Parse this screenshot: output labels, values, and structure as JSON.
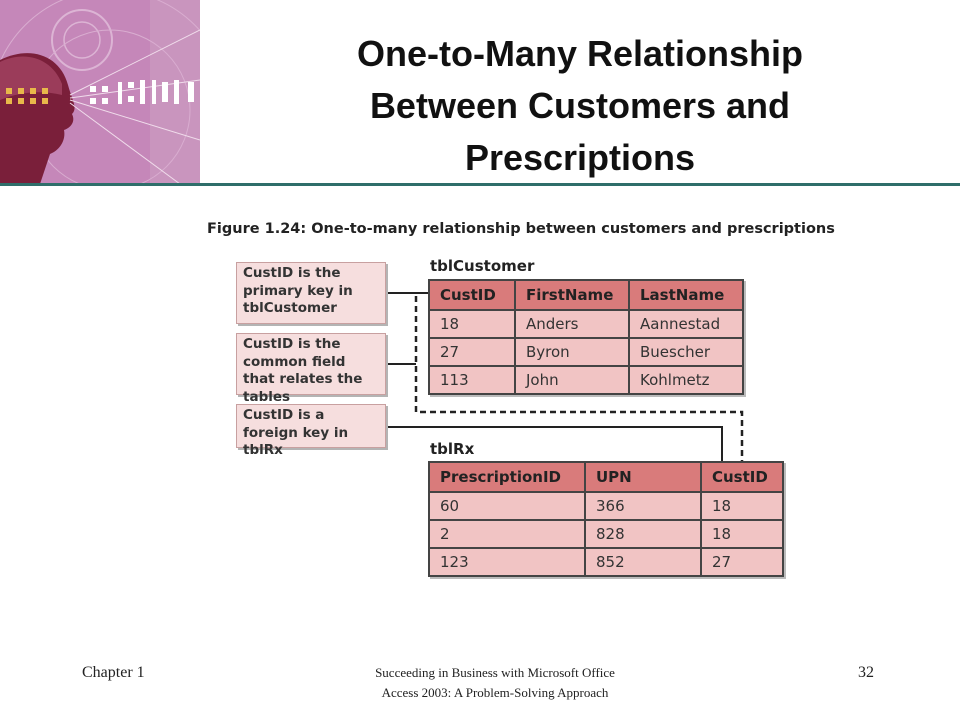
{
  "title_lines": [
    "One-to-Many Relationship",
    "Between Customers and",
    "Prescriptions"
  ],
  "figure": {
    "caption": "Figure 1.24: One-to-many relationship between customers and prescriptions",
    "callouts": [
      "CustID is the primary key in tblCustomer",
      "CustID is the common field that relates the tables",
      "CustID is a foreign key in tblRx"
    ],
    "customer_table": {
      "name": "tblCustomer",
      "columns": [
        "CustID",
        "FirstName",
        "LastName"
      ],
      "rows": [
        [
          "18",
          "Anders",
          "Aannestad"
        ],
        [
          "27",
          "Byron",
          "Buescher"
        ],
        [
          "113",
          "John",
          "Kohlmetz"
        ]
      ]
    },
    "rx_table": {
      "name": "tblRx",
      "columns": [
        "PrescriptionID",
        "UPN",
        "CustID"
      ],
      "rows": [
        [
          "60",
          "366",
          "18"
        ],
        [
          "2",
          "828",
          "18"
        ],
        [
          "123",
          "852",
          "27"
        ]
      ]
    }
  },
  "footer": {
    "chapter": "Chapter 1",
    "book_line1": "Succeeding in Business with Microsoft Office",
    "book_line2": "Access 2003: A Problem-Solving Approach",
    "page": "32"
  },
  "colors": {
    "header_row": "#d97b7b",
    "data_row": "#f1c4c4",
    "callout_bg": "#f6dede",
    "rule": "#2f6e6a",
    "corner_art": "#c587b9"
  },
  "icons": [
    "decorative-face-art"
  ]
}
